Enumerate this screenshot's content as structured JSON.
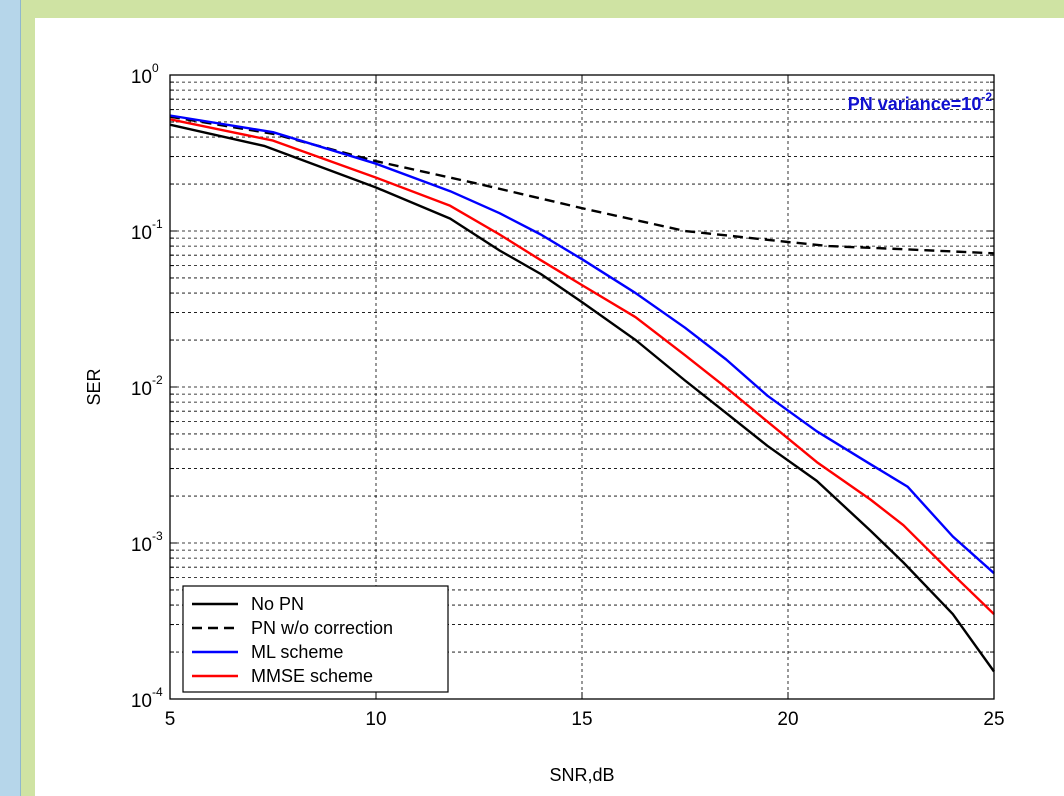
{
  "chart_data": {
    "type": "line",
    "title": "",
    "xlabel": "SNR,dB",
    "ylabel": "SER",
    "yscale": "log",
    "xlim": [
      5,
      25
    ],
    "ylim": [
      0.0001,
      1
    ],
    "grid": true,
    "legend_position": "bottom-left",
    "x_ticks": [
      5,
      10,
      15,
      20,
      25
    ],
    "x_tick_labels": [
      "5",
      "10",
      "15",
      "20",
      "25"
    ],
    "y_ticks": [
      0.0001,
      0.001,
      0.01,
      0.1,
      1
    ],
    "y_tick_base": "10",
    "y_tick_exponents": [
      "-4",
      "-3",
      "-2",
      "-1",
      "0"
    ],
    "annotation": {
      "text": "PN variance=10",
      "exponent": "-2",
      "color": "#1010d0"
    },
    "series": [
      {
        "name": "No PN",
        "color": "#000000",
        "dash": "solid",
        "x": [
          5,
          7.3,
          10,
          11.8,
          13,
          14,
          15,
          16.3,
          17.5,
          18.5,
          19.5,
          20.7,
          22,
          22.8,
          24,
          25
        ],
        "y": [
          0.48,
          0.35,
          0.19,
          0.12,
          0.075,
          0.053,
          0.035,
          0.02,
          0.011,
          0.0068,
          0.0042,
          0.0025,
          0.0012,
          0.00075,
          0.00035,
          0.00015
        ]
      },
      {
        "name": "PN w/o correction",
        "color": "#000000",
        "dash": "dashed",
        "x": [
          5,
          7.5,
          10,
          12.5,
          15,
          17.5,
          20,
          21,
          22.5,
          25
        ],
        "y": [
          0.54,
          0.42,
          0.28,
          0.2,
          0.14,
          0.1,
          0.085,
          0.08,
          0.077,
          0.072
        ]
      },
      {
        "name": "ML scheme",
        "color": "#0000ff",
        "dash": "solid",
        "x": [
          5,
          7.5,
          10,
          11.8,
          13,
          14,
          15,
          16.3,
          17.5,
          18.5,
          19.5,
          20.7,
          22,
          22.9,
          24,
          25
        ],
        "y": [
          0.55,
          0.43,
          0.27,
          0.18,
          0.13,
          0.095,
          0.066,
          0.04,
          0.024,
          0.015,
          0.0088,
          0.0052,
          0.0032,
          0.0023,
          0.0011,
          0.00064
        ]
      },
      {
        "name": "MMSE scheme",
        "color": "#ff0000",
        "dash": "solid",
        "x": [
          5,
          7.5,
          10,
          11.8,
          13,
          14,
          15,
          16.3,
          17.5,
          18.5,
          19.5,
          20.7,
          22,
          22.8,
          24,
          25
        ],
        "y": [
          0.52,
          0.38,
          0.22,
          0.145,
          0.095,
          0.065,
          0.045,
          0.028,
          0.016,
          0.0099,
          0.006,
          0.0033,
          0.0019,
          0.0013,
          0.00063,
          0.00035
        ]
      }
    ]
  }
}
